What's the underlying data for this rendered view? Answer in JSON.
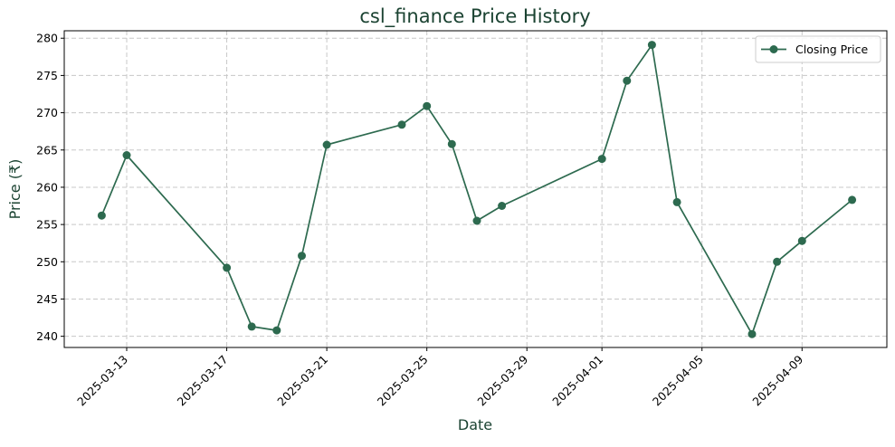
{
  "chart_data": {
    "type": "line",
    "title": "csl_finance Price History",
    "xlabel": "Date",
    "ylabel": "Price (₹)",
    "x_tick_labels": [
      "2025-03-13",
      "2025-03-17",
      "2025-03-21",
      "2025-03-25",
      "2025-03-29",
      "2025-04-01",
      "2025-04-05",
      "2025-04-09"
    ],
    "y_tick_labels": [
      "240",
      "245",
      "250",
      "255",
      "260",
      "265",
      "270",
      "275",
      "280"
    ],
    "ylim": [
      238.5,
      281
    ],
    "grid": true,
    "legend_position": "top-right",
    "series": [
      {
        "name": "Closing Price",
        "color": "#2d6a4f",
        "points": [
          {
            "date": "2025-03-12",
            "value": 256.2
          },
          {
            "date": "2025-03-13",
            "value": 264.3
          },
          {
            "date": "2025-03-17",
            "value": 249.2
          },
          {
            "date": "2025-03-18",
            "value": 241.3
          },
          {
            "date": "2025-03-19",
            "value": 240.8
          },
          {
            "date": "2025-03-20",
            "value": 250.8
          },
          {
            "date": "2025-03-21",
            "value": 265.7
          },
          {
            "date": "2025-03-24",
            "value": 268.4
          },
          {
            "date": "2025-03-25",
            "value": 270.9
          },
          {
            "date": "2025-03-26",
            "value": 265.8
          },
          {
            "date": "2025-03-27",
            "value": 255.5
          },
          {
            "date": "2025-03-28",
            "value": 257.5
          },
          {
            "date": "2025-04-01",
            "value": 263.8
          },
          {
            "date": "2025-04-02",
            "value": 274.3
          },
          {
            "date": "2025-04-03",
            "value": 279.1
          },
          {
            "date": "2025-04-04",
            "value": 258.0
          },
          {
            "date": "2025-04-07",
            "value": 240.3
          },
          {
            "date": "2025-04-08",
            "value": 250.0
          },
          {
            "date": "2025-04-09",
            "value": 252.8
          },
          {
            "date": "2025-04-11",
            "value": 258.3
          }
        ]
      }
    ]
  }
}
